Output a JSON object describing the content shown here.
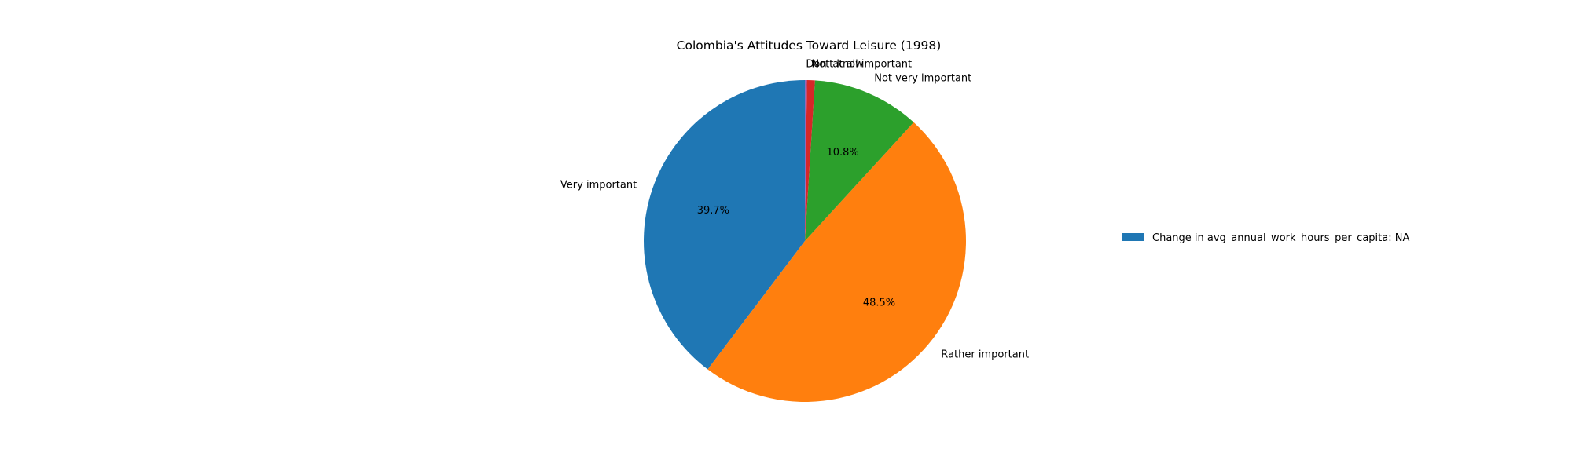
{
  "chart_data": {
    "type": "pie",
    "title": "Colombia's Attitudes Toward Leisure (1998)",
    "start_angle_deg": 90,
    "direction": "counterclockwise",
    "slices": [
      {
        "label": "Very important",
        "value": 39.7,
        "pct_label": "39.7%",
        "color": "#1f77b4"
      },
      {
        "label": "Rather important",
        "value": 48.5,
        "pct_label": "48.5%",
        "color": "#ff7f0e"
      },
      {
        "label": "Not very important",
        "value": 10.8,
        "pct_label": "10.8%",
        "color": "#2ca02c"
      },
      {
        "label": "Not at all important",
        "value": 0.8,
        "pct_label": "",
        "color": "#d62728"
      },
      {
        "label": "Don't know",
        "value": 0.2,
        "pct_label": "",
        "color": "#9467bd"
      }
    ],
    "legend": {
      "placement": "right",
      "entries": [
        {
          "label": "Change in avg_annual_work_hours_per_capita: NA",
          "color": "#1f77b4"
        }
      ]
    }
  }
}
